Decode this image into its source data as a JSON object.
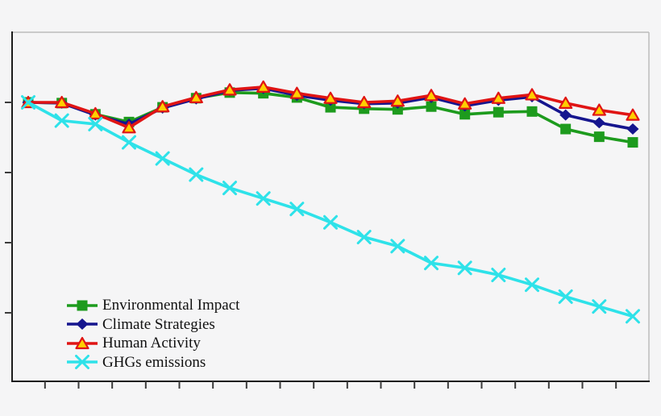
{
  "chart_data": {
    "type": "line",
    "title": "",
    "x_axis": {
      "tick_labels_visible": false,
      "num_points": 19,
      "num_ticks": 18,
      "ticks_between_points": true
    },
    "y_axis": {
      "tick_labels_visible": false,
      "tick_values_estimated": [
        100,
        90,
        80,
        70
      ],
      "ylim_estimated": [
        60,
        110
      ],
      "grid": false
    },
    "legend_position": "lower-left",
    "series": [
      {
        "name": "Environmental Impact",
        "color": "#1d9b1d",
        "marker": "square",
        "values": [
          100,
          99.9,
          98.3,
          97.2,
          99.3,
          100.6,
          101.4,
          101.3,
          100.7,
          99.3,
          99.1,
          99.0,
          99.4,
          98.3,
          98.6,
          98.7,
          96.2,
          95.1,
          94.3
        ]
      },
      {
        "name": "Climate Strategies",
        "color": "#15158e",
        "marker": "diamond",
        "values": [
          100,
          99.9,
          98.2,
          96.9,
          99.2,
          100.5,
          101.7,
          102.0,
          101.0,
          100.3,
          99.8,
          99.9,
          100.7,
          99.5,
          100.3,
          100.8,
          98.2,
          97.1,
          96.2
        ]
      },
      {
        "name": "Human Activity",
        "color": "#e01414",
        "marker": "triangle-up",
        "marker_fill": "#ffcf00",
        "values": [
          100,
          100,
          98.4,
          96.4,
          99.4,
          100.7,
          101.8,
          102.2,
          101.3,
          100.6,
          100.0,
          100.2,
          101.0,
          99.8,
          100.6,
          101.1,
          99.9,
          98.9,
          98.2
        ]
      },
      {
        "name": "GHGs emissions",
        "color": "#2ee2e9",
        "marker": "x",
        "values": [
          100,
          97.4,
          96.9,
          94.3,
          92.0,
          89.7,
          87.8,
          86.3,
          84.8,
          82.9,
          80.8,
          79.5,
          77.1,
          76.4,
          75.4,
          74.0,
          72.3,
          70.9,
          69.5
        ]
      }
    ],
    "frame_colors": {
      "axis_dark": "#1c1c1c",
      "axis_light": "#bcbcbc",
      "tick": "#3c3c3c",
      "background": "#f5f5f6"
    }
  }
}
